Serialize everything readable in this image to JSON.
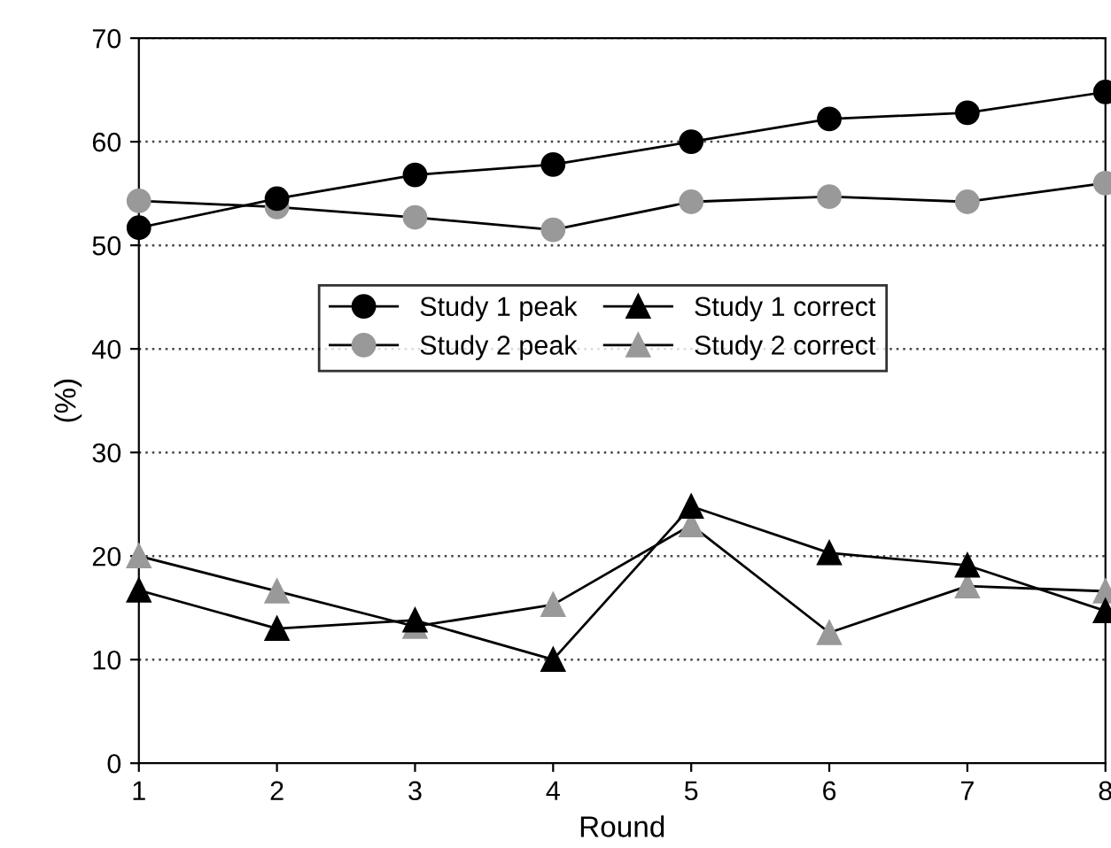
{
  "chart_data": {
    "type": "line",
    "xlabel": "Round",
    "ylabel": "(%)",
    "x": [
      1,
      2,
      3,
      4,
      5,
      6,
      7,
      8
    ],
    "xlim": [
      1,
      8
    ],
    "xticks": [
      1,
      2,
      3,
      4,
      5,
      6,
      7,
      8
    ],
    "ylim": [
      0,
      70
    ],
    "yticks": [
      0,
      10,
      20,
      30,
      40,
      50,
      60,
      70
    ],
    "grid": "y",
    "legend": "center",
    "line_style": "solid",
    "series": [
      {
        "name": "Study 1 peak",
        "color": "#000000",
        "marker": "circle",
        "values": [
          51.7,
          54.5,
          56.8,
          57.8,
          60.0,
          62.2,
          62.8,
          64.8
        ]
      },
      {
        "name": "Study 2 peak",
        "color": "#999999",
        "marker": "circle",
        "values": [
          54.3,
          53.7,
          52.7,
          51.5,
          54.2,
          54.7,
          54.2,
          56.0
        ]
      },
      {
        "name": "Study 1 correct",
        "color": "#000000",
        "marker": "triangle",
        "values": [
          16.7,
          13.0,
          13.8,
          10.0,
          24.8,
          20.3,
          19.1,
          14.7
        ]
      },
      {
        "name": "Study 2 correct",
        "color": "#999999",
        "marker": "triangle",
        "values": [
          20.0,
          16.6,
          13.2,
          15.3,
          23.0,
          12.6,
          17.1,
          16.6
        ]
      }
    ]
  }
}
